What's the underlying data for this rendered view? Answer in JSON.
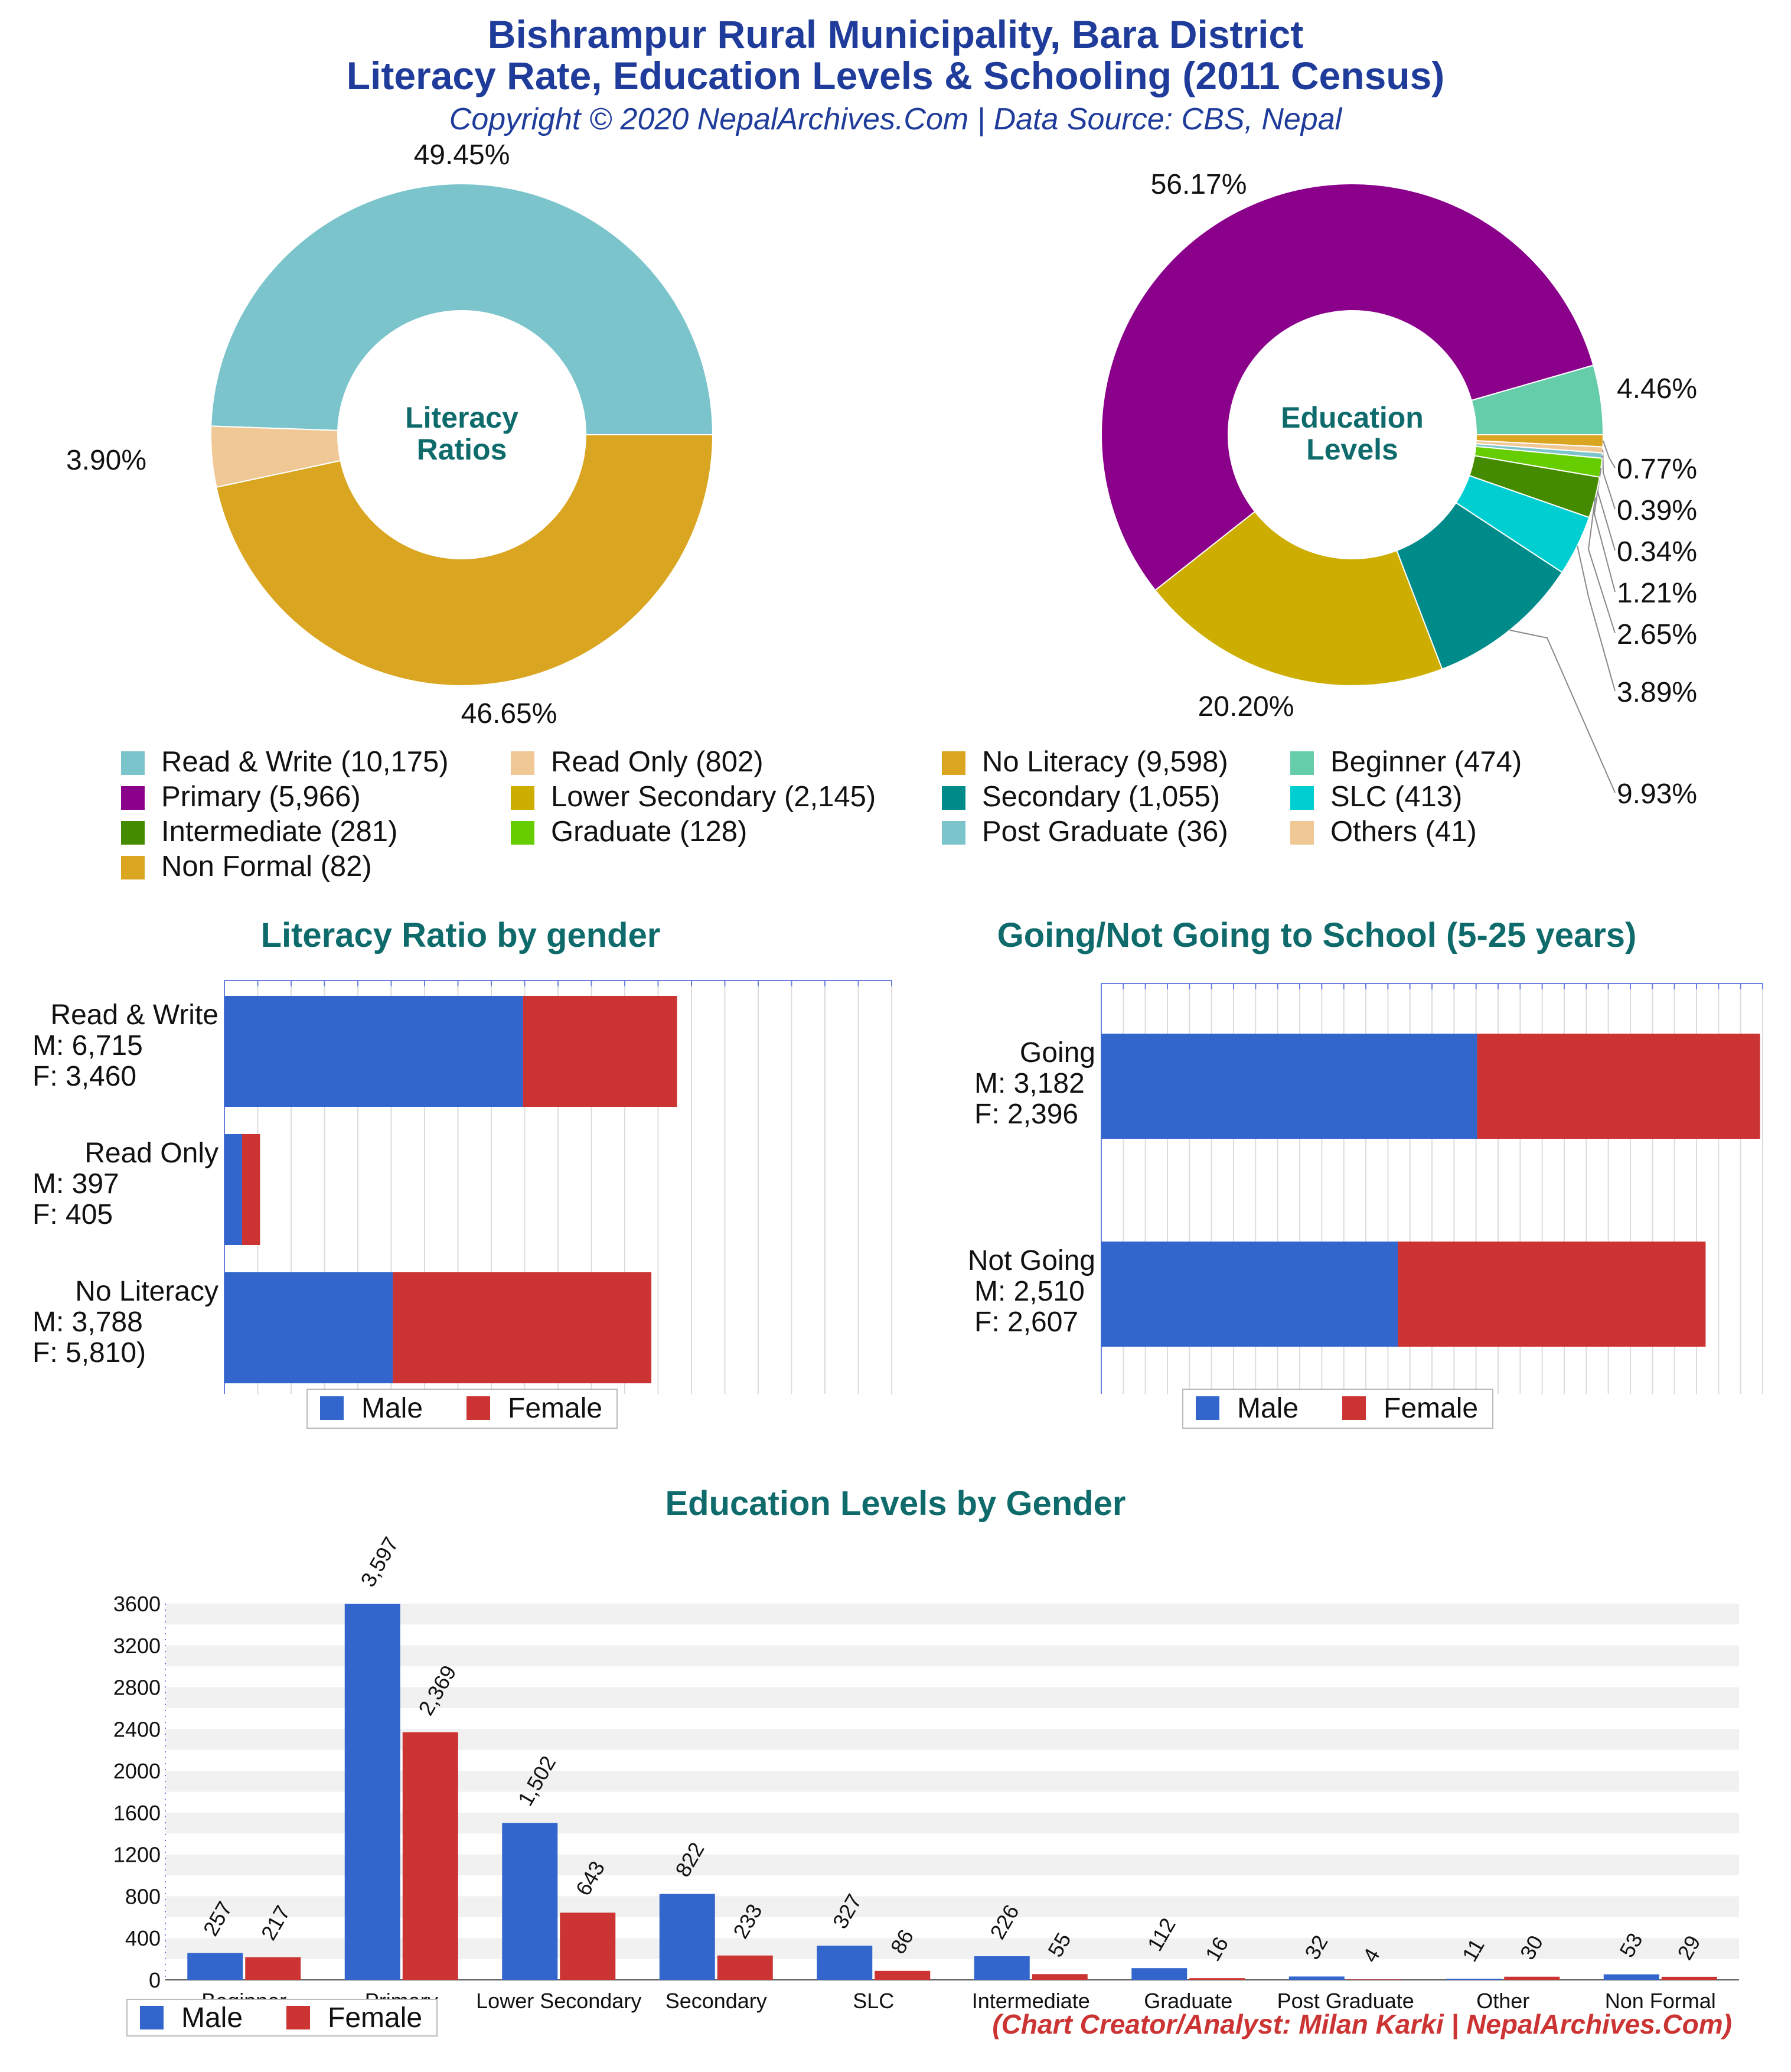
{
  "header": {
    "title_line1": "Bishrampur Rural Municipality, Bara District",
    "title_line2": "Literacy Rate, Education Levels & Schooling (2011 Census)",
    "subtitle": "Copyright © 2020 NepalArchives.Com | Data Source: CBS, Nepal"
  },
  "credit": "(Chart Creator/Analyst: Milan Karki | NepalArchives.Com)",
  "colors": {
    "male": "#3366cc",
    "female": "#cc3333",
    "center_label": "#0f6b6b"
  },
  "legend": [
    {
      "label": "Read & Write (10,175)",
      "color": "#7cc4cc"
    },
    {
      "label": "Read Only (802)",
      "color": "#f0c896"
    },
    {
      "label": "No Literacy (9,598)",
      "color": "#daa520"
    },
    {
      "label": "Beginner (474)",
      "color": "#66cdaa"
    },
    {
      "label": "Primary (5,966)",
      "color": "#8b008b"
    },
    {
      "label": "Lower Secondary (2,145)",
      "color": "#ccad00"
    },
    {
      "label": "Secondary (1,055)",
      "color": "#008b8b"
    },
    {
      "label": "SLC (413)",
      "color": "#00ced1"
    },
    {
      "label": "Intermediate (281)",
      "color": "#458b00"
    },
    {
      "label": "Graduate (128)",
      "color": "#66cd00"
    },
    {
      "label": "Post Graduate (36)",
      "color": "#7cc4cc"
    },
    {
      "label": "Others (41)",
      "color": "#f0c896"
    },
    {
      "label": "Non Formal (82)",
      "color": "#daa520"
    }
  ],
  "chart_data": [
    {
      "type": "pie",
      "donut": true,
      "center_label": [
        "Literacy",
        "Ratios"
      ],
      "slices": [
        {
          "name": "Read & Write",
          "value": 10175,
          "pct_label": "49.45%",
          "color": "#7cc4cc"
        },
        {
          "name": "No Literacy",
          "value": 9598,
          "pct_label": "46.65%",
          "color": "#daa520"
        },
        {
          "name": "Read Only",
          "value": 802,
          "pct_label": "3.90%",
          "color": "#f0c896"
        }
      ]
    },
    {
      "type": "pie",
      "donut": true,
      "center_label": [
        "Education",
        "Levels"
      ],
      "slices": [
        {
          "name": "Primary",
          "value": 5966,
          "pct_label": "56.17%",
          "color": "#8b008b"
        },
        {
          "name": "Beginner",
          "value": 474,
          "pct_label": "4.46%",
          "color": "#66cdaa"
        },
        {
          "name": "Non Formal",
          "value": 82,
          "pct_label": "0.77%",
          "color": "#daa520"
        },
        {
          "name": "Others",
          "value": 41,
          "pct_label": "0.39%",
          "color": "#f0c896"
        },
        {
          "name": "Post Graduate",
          "value": 36,
          "pct_label": "0.34%",
          "color": "#7cc4cc"
        },
        {
          "name": "Graduate",
          "value": 128,
          "pct_label": "1.21%",
          "color": "#66cd00"
        },
        {
          "name": "Intermediate",
          "value": 281,
          "pct_label": "2.65%",
          "color": "#458b00"
        },
        {
          "name": "SLC",
          "value": 413,
          "pct_label": "3.89%",
          "color": "#00ced1"
        },
        {
          "name": "Secondary",
          "value": 1055,
          "pct_label": "9.93%",
          "color": "#008b8b"
        },
        {
          "name": "Lower Secondary",
          "value": 2145,
          "pct_label": "20.20%",
          "color": "#ccad00"
        }
      ]
    },
    {
      "type": "bar",
      "orientation": "horizontal",
      "stacked": true,
      "title": "Literacy Ratio by gender",
      "categories": [
        "Read & Write",
        "Read Only",
        "No Literacy"
      ],
      "category_labels": [
        [
          "Read & Write",
          "M: 6,715",
          "F: 3,460"
        ],
        [
          "Read Only",
          "M: 397",
          "F: 405"
        ],
        [
          "No Literacy",
          "M: 3,788",
          "F: 5,810)"
        ]
      ],
      "series": [
        {
          "name": "Male",
          "values": [
            6715,
            397,
            3788
          ]
        },
        {
          "name": "Female",
          "values": [
            3460,
            405,
            5810
          ]
        }
      ],
      "xlim": [
        0,
        15000
      ],
      "legend": "bottom"
    },
    {
      "type": "bar",
      "orientation": "horizontal",
      "stacked": true,
      "title": "Going/Not Going to School (5-25 years)",
      "categories": [
        "Going",
        "Not Going"
      ],
      "category_labels": [
        [
          "Going",
          "M: 3,182",
          "F: 2,396"
        ],
        [
          "Not Going",
          "M: 2,510",
          "F: 2,607"
        ]
      ],
      "series": [
        {
          "name": "Male",
          "values": [
            3182,
            2510
          ]
        },
        {
          "name": "Female",
          "values": [
            2396,
            2607
          ]
        }
      ],
      "xlim": [
        0,
        5600
      ],
      "legend": "bottom"
    },
    {
      "type": "bar",
      "orientation": "vertical",
      "title": "Education Levels by Gender",
      "categories": [
        "Beginner",
        "Primary",
        "Lower Secondary",
        "Secondary",
        "SLC",
        "Intermediate",
        "Graduate",
        "Post Graduate",
        "Other",
        "Non Formal"
      ],
      "series": [
        {
          "name": "Male",
          "values": [
            257,
            3597,
            1502,
            822,
            327,
            226,
            112,
            32,
            11,
            53
          ],
          "labels": [
            "257",
            "3,597",
            "1,502",
            "822",
            "327",
            "226",
            "112",
            "32",
            "11",
            "53"
          ]
        },
        {
          "name": "Female",
          "values": [
            217,
            2369,
            643,
            233,
            86,
            55,
            16,
            4,
            30,
            29
          ],
          "labels": [
            "217",
            "2,369",
            "643",
            "233",
            "86",
            "55",
            "16",
            "4",
            "30",
            "29"
          ]
        }
      ],
      "ylim": [
        0,
        3600
      ],
      "yticks": [
        "0",
        "400",
        "800",
        "1200",
        "1600",
        "2000",
        "2400",
        "2800",
        "3200",
        "3600"
      ],
      "grid": true,
      "legend": "bottom-left"
    }
  ]
}
